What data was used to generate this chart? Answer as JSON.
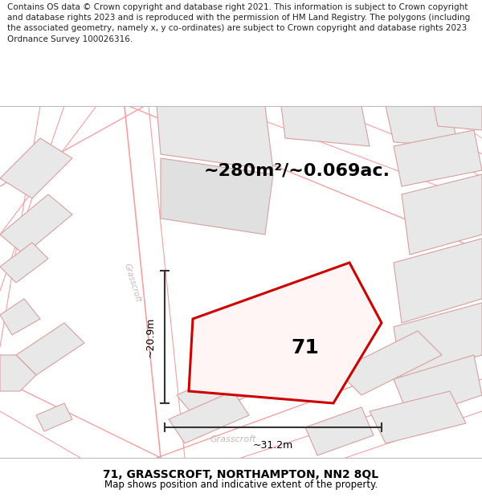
{
  "title": "71, GRASSCROFT, NORTHAMPTON, NN2 8QL",
  "subtitle": "Map shows position and indicative extent of the property.",
  "area_text": "~280m²/~0.069ac.",
  "label_71": "71",
  "dim_vertical": "~20.9m",
  "dim_horizontal": "~31.2m",
  "footer": "Contains OS data © Crown copyright and database right 2021. This information is subject to Crown copyright and database rights 2023 and is reproduced with the permission of HM Land Registry. The polygons (including the associated geometry, namely x, y co-ordinates) are subject to Crown copyright and database rights 2023 Ordnance Survey 100026316.",
  "bg_color": "#ffffff",
  "map_bg": "#ffffff",
  "property_color": "#cc0000",
  "street_color": "#f5a0a0",
  "building_fill": "#e8e8e8",
  "building_edge": "#d8a0a0",
  "dim_color": "#333333",
  "title_color": "#000000",
  "road_label_color": "#c8b8b8",
  "title_fontsize": 10,
  "subtitle_fontsize": 8.5,
  "area_fontsize": 16,
  "label_fontsize": 18,
  "dim_fontsize": 9,
  "footer_fontsize": 7.5
}
